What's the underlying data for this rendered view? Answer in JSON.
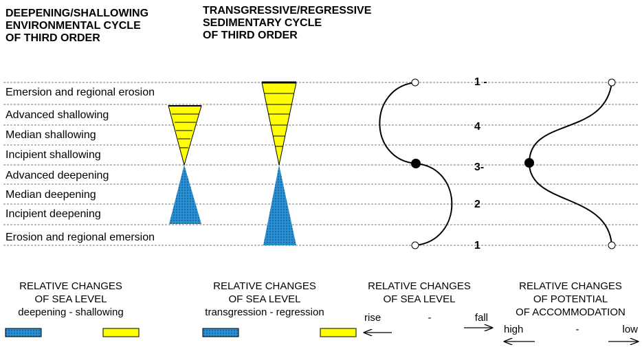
{
  "headers": {
    "left": [
      "DEEPENING/SHALLOWING",
      "ENVIRONMENTAL CYCLE",
      "OF THIRD ORDER"
    ],
    "right": [
      "TRANSGRESSIVE/REGRESSIVE",
      "SEDIMENTARY CYCLE",
      "OF THIRD ORDER"
    ]
  },
  "rows": [
    "Emersion and regional erosion",
    "Advanced shallowing",
    "Median shallowing",
    "Incipient shallowing",
    "Advanced deepening",
    "Median deepening",
    "Incipient deepening",
    "Erosion and regional emersion"
  ],
  "curve_labels": [
    "1 -",
    "4",
    "3-",
    "2",
    "1"
  ],
  "legends": [
    {
      "lines": [
        "RELATIVE CHANGES",
        "OF SEA LEVEL",
        "deepening - shallowing"
      ]
    },
    {
      "lines": [
        "RELATIVE CHANGES",
        "OF SEA LEVEL",
        "transgression - regression"
      ]
    },
    {
      "lines": [
        "RELATIVE CHANGES",
        "OF SEA LEVEL"
      ],
      "left": "rise",
      "mid": "-",
      "right": "fall"
    },
    {
      "lines": [
        "RELATIVE CHANGES",
        "OF POTENTIAL",
        "OF ACCOMMODATION"
      ],
      "left": "high",
      "mid": "-",
      "right": "low"
    }
  ]
}
